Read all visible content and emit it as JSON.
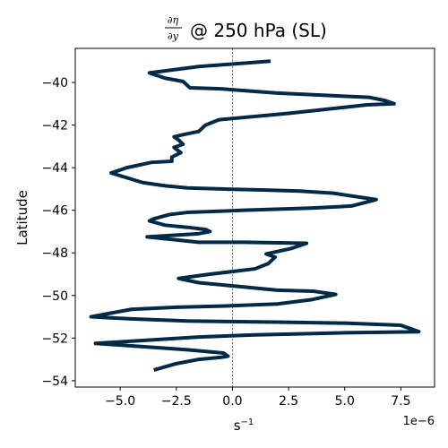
{
  "chart_data": {
    "type": "line",
    "title": "@ 250 hPa (SL)",
    "title_math": {
      "numerator": "∂η",
      "denominator": "∂y"
    },
    "xlabel": "s",
    "xlabel_superscript": "−1",
    "ylabel": "Latitude",
    "x_offset_label": "1e−6",
    "x_scale": 1e-06,
    "xlim": [
      -7.0,
      9.0
    ],
    "ylim": [
      -54.3,
      -38.4
    ],
    "xticks": [
      -5.0,
      -2.5,
      0.0,
      2.5,
      5.0,
      7.5
    ],
    "xtick_labels": [
      "−5.0",
      "−2.5",
      "0.0",
      "2.5",
      "5.0",
      "7.5"
    ],
    "yticks": [
      -40,
      -42,
      -44,
      -46,
      -48,
      -50,
      -52,
      -54
    ],
    "ytick_labels": [
      "−40",
      "−42",
      "−44",
      "−46",
      "−48",
      "−50",
      "−52",
      "−54"
    ],
    "reference_line": {
      "x": 0,
      "color": "#d62728",
      "style": "dashed"
    },
    "series": [
      {
        "color": "#002a45",
        "points": [
          [
            1.7,
            -39.0
          ],
          [
            -1.5,
            -39.25
          ],
          [
            -3.7,
            -39.55
          ],
          [
            -3.0,
            -39.8
          ],
          [
            -2.2,
            -39.95
          ],
          [
            -1.9,
            -40.25
          ],
          [
            -0.5,
            -40.3
          ],
          [
            2.0,
            -40.5
          ],
          [
            6.1,
            -40.7
          ],
          [
            6.8,
            -40.85
          ],
          [
            7.2,
            -41.0
          ],
          [
            6.0,
            -41.05
          ],
          [
            2.5,
            -41.45
          ],
          [
            -0.6,
            -41.75
          ],
          [
            -1.2,
            -42.0
          ],
          [
            -1.5,
            -42.3
          ],
          [
            -2.2,
            -42.45
          ],
          [
            -2.6,
            -42.55
          ],
          [
            -2.4,
            -42.7
          ],
          [
            -2.2,
            -42.9
          ],
          [
            -2.6,
            -43.05
          ],
          [
            -2.3,
            -43.3
          ],
          [
            -2.7,
            -43.5
          ],
          [
            -2.7,
            -43.7
          ],
          [
            -3.6,
            -43.75
          ],
          [
            -4.7,
            -44.0
          ],
          [
            -5.4,
            -44.25
          ],
          [
            -4.0,
            -44.7
          ],
          [
            -3.0,
            -44.85
          ],
          [
            -2.0,
            -44.95
          ],
          [
            -0.5,
            -45.0
          ],
          [
            1.5,
            -45.05
          ],
          [
            3.0,
            -45.1
          ],
          [
            4.5,
            -45.2
          ],
          [
            6.4,
            -45.5
          ],
          [
            5.3,
            -45.8
          ],
          [
            3.5,
            -45.9
          ],
          [
            0.5,
            -46.0
          ],
          [
            -2.0,
            -46.1
          ],
          [
            -2.8,
            -46.2
          ],
          [
            -3.5,
            -46.4
          ],
          [
            -3.7,
            -46.5
          ],
          [
            -3.0,
            -46.7
          ],
          [
            -2.0,
            -46.8
          ],
          [
            -1.2,
            -46.9
          ],
          [
            -1.0,
            -47.0
          ],
          [
            -1.5,
            -47.1
          ],
          [
            -3.8,
            -47.25
          ],
          [
            -1.5,
            -47.5
          ],
          [
            0.5,
            -47.5
          ],
          [
            3.3,
            -47.55
          ],
          [
            2.6,
            -47.8
          ],
          [
            1.5,
            -48.05
          ],
          [
            1.9,
            -48.2
          ],
          [
            1.6,
            -48.5
          ],
          [
            1.0,
            -48.75
          ],
          [
            -1.0,
            -49.0
          ],
          [
            -2.4,
            -49.2
          ],
          [
            -1.5,
            -49.4
          ],
          [
            0.5,
            -49.6
          ],
          [
            2.0,
            -49.75
          ],
          [
            3.6,
            -49.8
          ],
          [
            4.6,
            -49.95
          ],
          [
            3.5,
            -50.2
          ],
          [
            2.0,
            -50.4
          ],
          [
            -0.5,
            -50.5
          ],
          [
            -2.5,
            -50.55
          ],
          [
            -4.5,
            -50.65
          ],
          [
            -6.3,
            -51.0
          ],
          [
            -4.5,
            -51.1
          ],
          [
            -2.0,
            -51.2
          ],
          [
            2.0,
            -51.25
          ],
          [
            5.0,
            -51.3
          ],
          [
            7.5,
            -51.4
          ],
          [
            8.3,
            -51.7
          ],
          [
            5.0,
            -51.75
          ],
          [
            1.0,
            -51.85
          ],
          [
            -1.5,
            -51.95
          ],
          [
            -6.1,
            -52.25
          ],
          [
            -4.0,
            -52.4
          ],
          [
            -2.0,
            -52.55
          ],
          [
            -0.4,
            -52.7
          ],
          [
            -0.2,
            -52.85
          ],
          [
            -0.5,
            -52.9
          ],
          [
            -1.5,
            -53.0
          ],
          [
            -2.5,
            -53.2
          ],
          [
            -3.5,
            -53.5
          ]
        ]
      }
    ]
  }
}
